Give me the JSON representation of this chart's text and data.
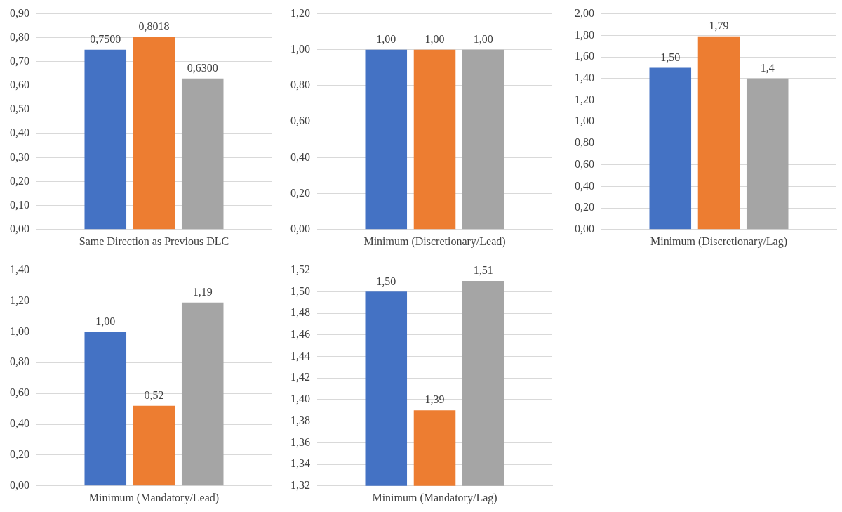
{
  "chart_data": [
    {
      "type": "bar",
      "categories": [
        "Same Direction as Previous DLC"
      ],
      "grid": "y",
      "ylim": [
        0,
        0.9
      ],
      "yticks": [
        {
          "value": 0,
          "label": "0,00"
        },
        {
          "value": 0.1,
          "label": "0,10"
        },
        {
          "value": 0.2,
          "label": "0,20"
        },
        {
          "value": 0.3,
          "label": "0,30"
        },
        {
          "value": 0.4,
          "label": "0,40"
        },
        {
          "value": 0.5,
          "label": "0,50"
        },
        {
          "value": 0.6,
          "label": "0,60"
        },
        {
          "value": 0.7,
          "label": "0,70"
        },
        {
          "value": 0.8,
          "label": "0,80"
        },
        {
          "value": 0.9,
          "label": "0,90"
        }
      ],
      "series": [
        {
          "color": "#4472c4",
          "values": [
            0.75
          ],
          "value_labels": [
            "0,7500"
          ]
        },
        {
          "color": "#ed7d31",
          "values": [
            0.8018
          ],
          "value_labels": [
            "0,8018"
          ]
        },
        {
          "color": "#a5a5a5",
          "values": [
            0.63
          ],
          "value_labels": [
            "0,6300"
          ]
        }
      ]
    },
    {
      "type": "bar",
      "categories": [
        "Minimum (Discretionary/Lead)"
      ],
      "grid": "y",
      "ylim": [
        0,
        1.2
      ],
      "yticks": [
        {
          "value": 0,
          "label": "0,00"
        },
        {
          "value": 0.2,
          "label": "0,20"
        },
        {
          "value": 0.4,
          "label": "0,40"
        },
        {
          "value": 0.6,
          "label": "0,60"
        },
        {
          "value": 0.8,
          "label": "0,80"
        },
        {
          "value": 1,
          "label": "1,00"
        },
        {
          "value": 1.2,
          "label": "1,20"
        }
      ],
      "series": [
        {
          "color": "#4472c4",
          "values": [
            1
          ],
          "value_labels": [
            "1,00"
          ]
        },
        {
          "color": "#ed7d31",
          "values": [
            1
          ],
          "value_labels": [
            "1,00"
          ]
        },
        {
          "color": "#a5a5a5",
          "values": [
            1
          ],
          "value_labels": [
            "1,00"
          ]
        }
      ]
    },
    {
      "type": "bar",
      "categories": [
        "Minimum (Discretionary/Lag)"
      ],
      "grid": "y",
      "ylim": [
        0,
        2
      ],
      "yticks": [
        {
          "value": 0,
          "label": "0,00"
        },
        {
          "value": 0.2,
          "label": "0,20"
        },
        {
          "value": 0.4,
          "label": "0,40"
        },
        {
          "value": 0.6,
          "label": "0,60"
        },
        {
          "value": 0.8,
          "label": "0,80"
        },
        {
          "value": 1,
          "label": "1,00"
        },
        {
          "value": 1.2,
          "label": "1,20"
        },
        {
          "value": 1.4,
          "label": "1,40"
        },
        {
          "value": 1.6,
          "label": "1,60"
        },
        {
          "value": 1.8,
          "label": "1,80"
        },
        {
          "value": 2,
          "label": "2,00"
        }
      ],
      "series": [
        {
          "color": "#4472c4",
          "values": [
            1.5
          ],
          "value_labels": [
            "1,50"
          ]
        },
        {
          "color": "#ed7d31",
          "values": [
            1.79
          ],
          "value_labels": [
            "1,79"
          ]
        },
        {
          "color": "#a5a5a5",
          "values": [
            1.4
          ],
          "value_labels": [
            "1,4"
          ]
        }
      ]
    },
    {
      "type": "bar",
      "categories": [
        "Minimum (Mandatory/Lead)"
      ],
      "grid": "y",
      "ylim": [
        0,
        1.4
      ],
      "yticks": [
        {
          "value": 0,
          "label": "0,00"
        },
        {
          "value": 0.2,
          "label": "0,20"
        },
        {
          "value": 0.4,
          "label": "0,40"
        },
        {
          "value": 0.6,
          "label": "0,60"
        },
        {
          "value": 0.8,
          "label": "0,80"
        },
        {
          "value": 1,
          "label": "1,00"
        },
        {
          "value": 1.2,
          "label": "1,20"
        },
        {
          "value": 1.4,
          "label": "1,40"
        }
      ],
      "series": [
        {
          "color": "#4472c4",
          "values": [
            1
          ],
          "value_labels": [
            "1,00"
          ]
        },
        {
          "color": "#ed7d31",
          "values": [
            0.52
          ],
          "value_labels": [
            "0,52"
          ]
        },
        {
          "color": "#a5a5a5",
          "values": [
            1.19
          ],
          "value_labels": [
            "1,19"
          ]
        }
      ]
    },
    {
      "type": "bar",
      "categories": [
        "Minimum (Mandatory/Lag)"
      ],
      "grid": "y",
      "ylim": [
        1.32,
        1.52
      ],
      "yticks": [
        {
          "value": 1.32,
          "label": "1,32"
        },
        {
          "value": 1.34,
          "label": "1,34"
        },
        {
          "value": 1.36,
          "label": "1,36"
        },
        {
          "value": 1.38,
          "label": "1,38"
        },
        {
          "value": 1.4,
          "label": "1,40"
        },
        {
          "value": 1.42,
          "label": "1,42"
        },
        {
          "value": 1.44,
          "label": "1,44"
        },
        {
          "value": 1.46,
          "label": "1,46"
        },
        {
          "value": 1.48,
          "label": "1,48"
        },
        {
          "value": 1.5,
          "label": "1,50"
        },
        {
          "value": 1.52,
          "label": "1,52"
        }
      ],
      "series": [
        {
          "color": "#4472c4",
          "values": [
            1.5
          ],
          "value_labels": [
            "1,50"
          ]
        },
        {
          "color": "#ed7d31",
          "values": [
            1.39
          ],
          "value_labels": [
            "1,39"
          ]
        },
        {
          "color": "#a5a5a5",
          "values": [
            1.51
          ],
          "value_labels": [
            "1,51"
          ]
        }
      ]
    }
  ]
}
